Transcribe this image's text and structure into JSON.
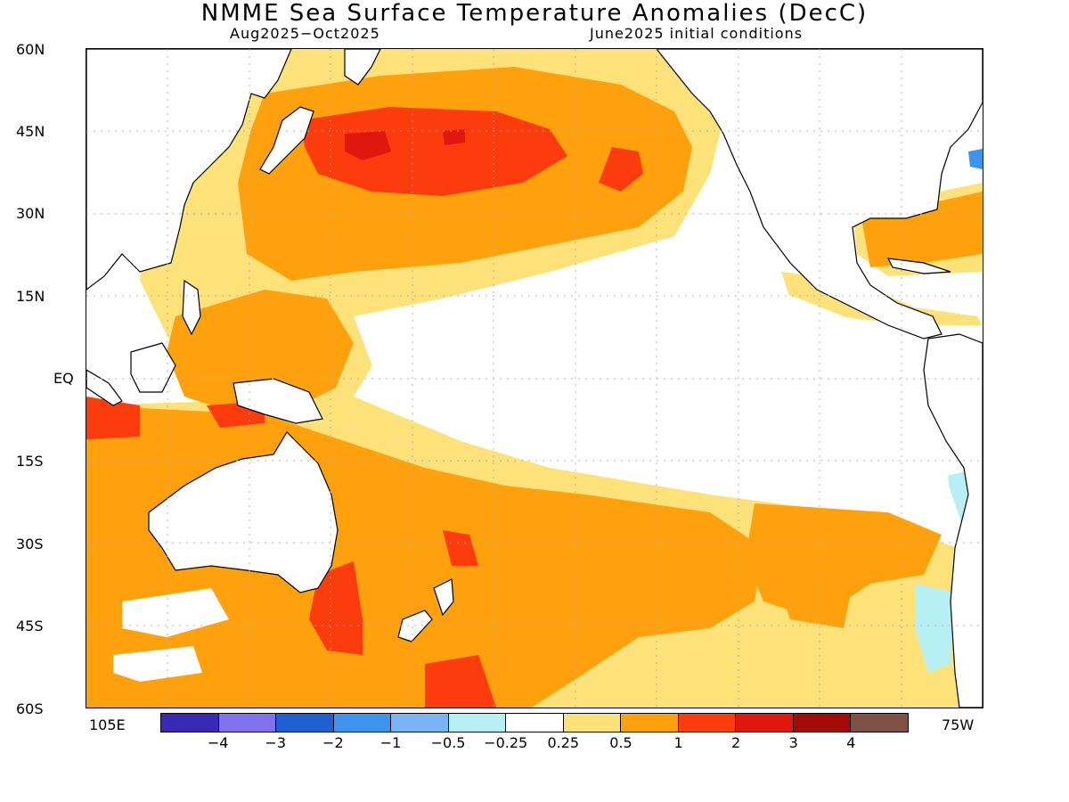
{
  "title": "NMME Sea Surface Temperature Anomalies (DecC)",
  "period": "Aug2025−Oct2025",
  "init_conditions": "June2025 initial conditions",
  "lat_labels": [
    "60N",
    "45N",
    "30N",
    "15N",
    "EQ",
    "15S",
    "30S",
    "45S",
    "60S"
  ],
  "lon_labels": {
    "west_edge": "105E",
    "east_edge": "75W"
  },
  "colorbar": {
    "colors": [
      "#3a28b6",
      "#8071ee",
      "#1e60d2",
      "#3c94ef",
      "#79b5f5",
      "#b6f0f5",
      "#ffffff",
      "#fde27a",
      "#ffa10c",
      "#fd3c0d",
      "#e0170f",
      "#a50a0a",
      "#7e5046"
    ],
    "labels": [
      "−4",
      "−3",
      "−2",
      "−1",
      "−0.5",
      "−0.25",
      "0.25",
      "0.5",
      "1",
      "2",
      "3",
      "4"
    ]
  },
  "colors": {
    "light_orange": "#fde27a",
    "orange": "#ffa10c",
    "red_orange": "#fd3c0d",
    "red": "#e0170f",
    "light_cyan": "#b6f0f5",
    "light_blue": "#79b5f5",
    "blue": "#3c94ef",
    "coast": "#000000",
    "grid": "#b0b0b0"
  }
}
